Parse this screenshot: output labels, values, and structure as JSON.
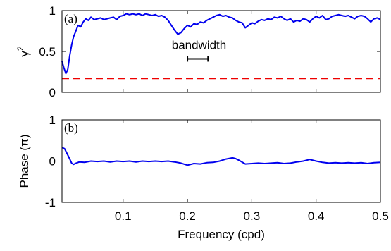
{
  "chart_data": [
    {
      "panel": "(a)",
      "type": "line",
      "ylabel_base": "γ",
      "ylabel_sup": "2",
      "xlabel": "",
      "xlim": [
        0.005,
        0.5
      ],
      "ylim": [
        0,
        1
      ],
      "yticks": [
        0,
        0.5,
        1
      ],
      "ytick_labels": [
        "0",
        "0.5",
        "1"
      ],
      "xticks": [
        0.1,
        0.2,
        0.3,
        0.4,
        0.5
      ],
      "xtick_labels": [
        "",
        "",
        "",
        "",
        ""
      ],
      "grid": false,
      "series": [
        {
          "color": "#0000ee",
          "style": "solid",
          "x": [
            0.005,
            0.008,
            0.011,
            0.014,
            0.017,
            0.02,
            0.023,
            0.026,
            0.03,
            0.034,
            0.038,
            0.042,
            0.046,
            0.05,
            0.055,
            0.06,
            0.065,
            0.07,
            0.075,
            0.08,
            0.085,
            0.09,
            0.095,
            0.1,
            0.105,
            0.11,
            0.115,
            0.12,
            0.125,
            0.13,
            0.135,
            0.14,
            0.145,
            0.15,
            0.155,
            0.16,
            0.165,
            0.17,
            0.175,
            0.18,
            0.185,
            0.19,
            0.195,
            0.2,
            0.205,
            0.21,
            0.215,
            0.22,
            0.225,
            0.23,
            0.235,
            0.24,
            0.245,
            0.25,
            0.255,
            0.26,
            0.265,
            0.27,
            0.275,
            0.28,
            0.285,
            0.29,
            0.295,
            0.3,
            0.305,
            0.31,
            0.315,
            0.32,
            0.325,
            0.33,
            0.335,
            0.34,
            0.345,
            0.35,
            0.355,
            0.36,
            0.365,
            0.37,
            0.375,
            0.38,
            0.385,
            0.39,
            0.395,
            0.4,
            0.405,
            0.41,
            0.415,
            0.42,
            0.425,
            0.43,
            0.435,
            0.44,
            0.445,
            0.45,
            0.455,
            0.46,
            0.465,
            0.47,
            0.475,
            0.48,
            0.485,
            0.49,
            0.495,
            0.5
          ],
          "y": [
            0.38,
            0.3,
            0.23,
            0.28,
            0.45,
            0.58,
            0.68,
            0.74,
            0.82,
            0.8,
            0.86,
            0.9,
            0.88,
            0.92,
            0.89,
            0.9,
            0.91,
            0.89,
            0.9,
            0.91,
            0.92,
            0.89,
            0.93,
            0.94,
            0.96,
            0.95,
            0.96,
            0.95,
            0.96,
            0.94,
            0.96,
            0.95,
            0.94,
            0.95,
            0.93,
            0.94,
            0.92,
            0.88,
            0.82,
            0.76,
            0.71,
            0.73,
            0.78,
            0.82,
            0.8,
            0.84,
            0.83,
            0.86,
            0.85,
            0.88,
            0.9,
            0.92,
            0.94,
            0.95,
            0.93,
            0.94,
            0.92,
            0.91,
            0.88,
            0.86,
            0.85,
            0.79,
            0.82,
            0.85,
            0.84,
            0.87,
            0.89,
            0.88,
            0.9,
            0.89,
            0.92,
            0.91,
            0.93,
            0.9,
            0.88,
            0.9,
            0.86,
            0.88,
            0.87,
            0.9,
            0.89,
            0.86,
            0.9,
            0.93,
            0.91,
            0.94,
            0.89,
            0.9,
            0.93,
            0.94,
            0.95,
            0.94,
            0.93,
            0.94,
            0.92,
            0.9,
            0.93,
            0.94,
            0.93,
            0.9,
            0.86,
            0.9,
            0.91,
            0.89
          ]
        },
        {
          "color": "#ee0000",
          "style": "dashed",
          "x": [
            0.005,
            0.5
          ],
          "y": [
            0.17,
            0.17
          ]
        }
      ],
      "annotations": [
        {
          "text": "bandwidth",
          "x": 0.218,
          "y": 0.53
        }
      ],
      "bandwidth_bar": {
        "x0": 0.2,
        "x1": 0.232,
        "y": 0.41
      }
    },
    {
      "panel": "(b)",
      "type": "line",
      "ylabel": "Phase (π)",
      "xlabel": "Frequency (cpd)",
      "xlim": [
        0.005,
        0.5
      ],
      "ylim": [
        -1,
        1
      ],
      "yticks": [
        -1,
        0,
        1
      ],
      "ytick_labels": [
        "-1",
        "0",
        "1"
      ],
      "xticks": [
        0.1,
        0.2,
        0.3,
        0.4,
        0.5
      ],
      "xtick_labels": [
        "0.1",
        "0.2",
        "0.3",
        "0.4",
        "0.5"
      ],
      "grid": false,
      "series": [
        {
          "color": "#0000ee",
          "style": "solid",
          "x": [
            0.005,
            0.009,
            0.013,
            0.017,
            0.02,
            0.023,
            0.027,
            0.032,
            0.04,
            0.05,
            0.06,
            0.07,
            0.08,
            0.09,
            0.1,
            0.11,
            0.12,
            0.13,
            0.14,
            0.15,
            0.16,
            0.17,
            0.18,
            0.19,
            0.2,
            0.21,
            0.22,
            0.23,
            0.24,
            0.25,
            0.26,
            0.27,
            0.275,
            0.28,
            0.29,
            0.3,
            0.31,
            0.32,
            0.33,
            0.34,
            0.35,
            0.36,
            0.37,
            0.38,
            0.39,
            0.4,
            0.41,
            0.42,
            0.43,
            0.44,
            0.45,
            0.46,
            0.47,
            0.48,
            0.49,
            0.5
          ],
          "y": [
            0.33,
            0.3,
            0.18,
            0.05,
            -0.05,
            -0.08,
            -0.05,
            -0.02,
            -0.03,
            0.0,
            -0.01,
            0.0,
            -0.02,
            0.0,
            -0.01,
            0.0,
            -0.02,
            0.0,
            -0.01,
            0.0,
            -0.01,
            0.0,
            -0.02,
            -0.05,
            -0.1,
            -0.06,
            -0.07,
            -0.04,
            -0.03,
            0.0,
            0.05,
            0.08,
            0.06,
            0.02,
            -0.07,
            -0.06,
            -0.05,
            -0.06,
            -0.05,
            -0.04,
            -0.06,
            -0.05,
            -0.02,
            0.0,
            0.04,
            0.0,
            -0.03,
            -0.05,
            -0.04,
            -0.05,
            -0.04,
            -0.05,
            -0.04,
            -0.06,
            -0.04,
            -0.03
          ]
        }
      ]
    }
  ]
}
